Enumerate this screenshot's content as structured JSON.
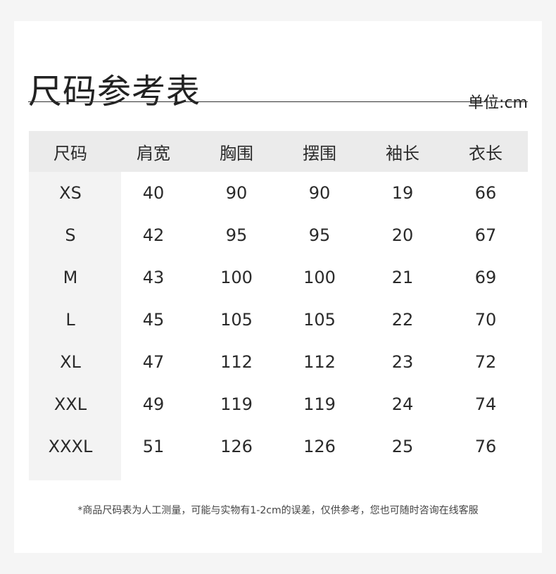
{
  "title": "尺码参考表",
  "unit": "单位:cm",
  "headers": [
    "尺码",
    "肩宽",
    "胸围",
    "摆围",
    "袖长",
    "衣长"
  ],
  "rows": [
    [
      "XS",
      "40",
      "90",
      "90",
      "19",
      "66"
    ],
    [
      "S",
      "42",
      "95",
      "95",
      "20",
      "67"
    ],
    [
      "M",
      "43",
      "100",
      "100",
      "21",
      "69"
    ],
    [
      "L",
      "45",
      "105",
      "105",
      "22",
      "70"
    ],
    [
      "XL",
      "47",
      "112",
      "112",
      "23",
      "72"
    ],
    [
      "XXL",
      "49",
      "119",
      "119",
      "24",
      "74"
    ],
    [
      "XXXL",
      "51",
      "126",
      "126",
      "25",
      "76"
    ]
  ],
  "note": "*商品尺码表为人工测量，可能与实物有1-2cm的误差，仅供参考，您也可随时咨询在线客服"
}
